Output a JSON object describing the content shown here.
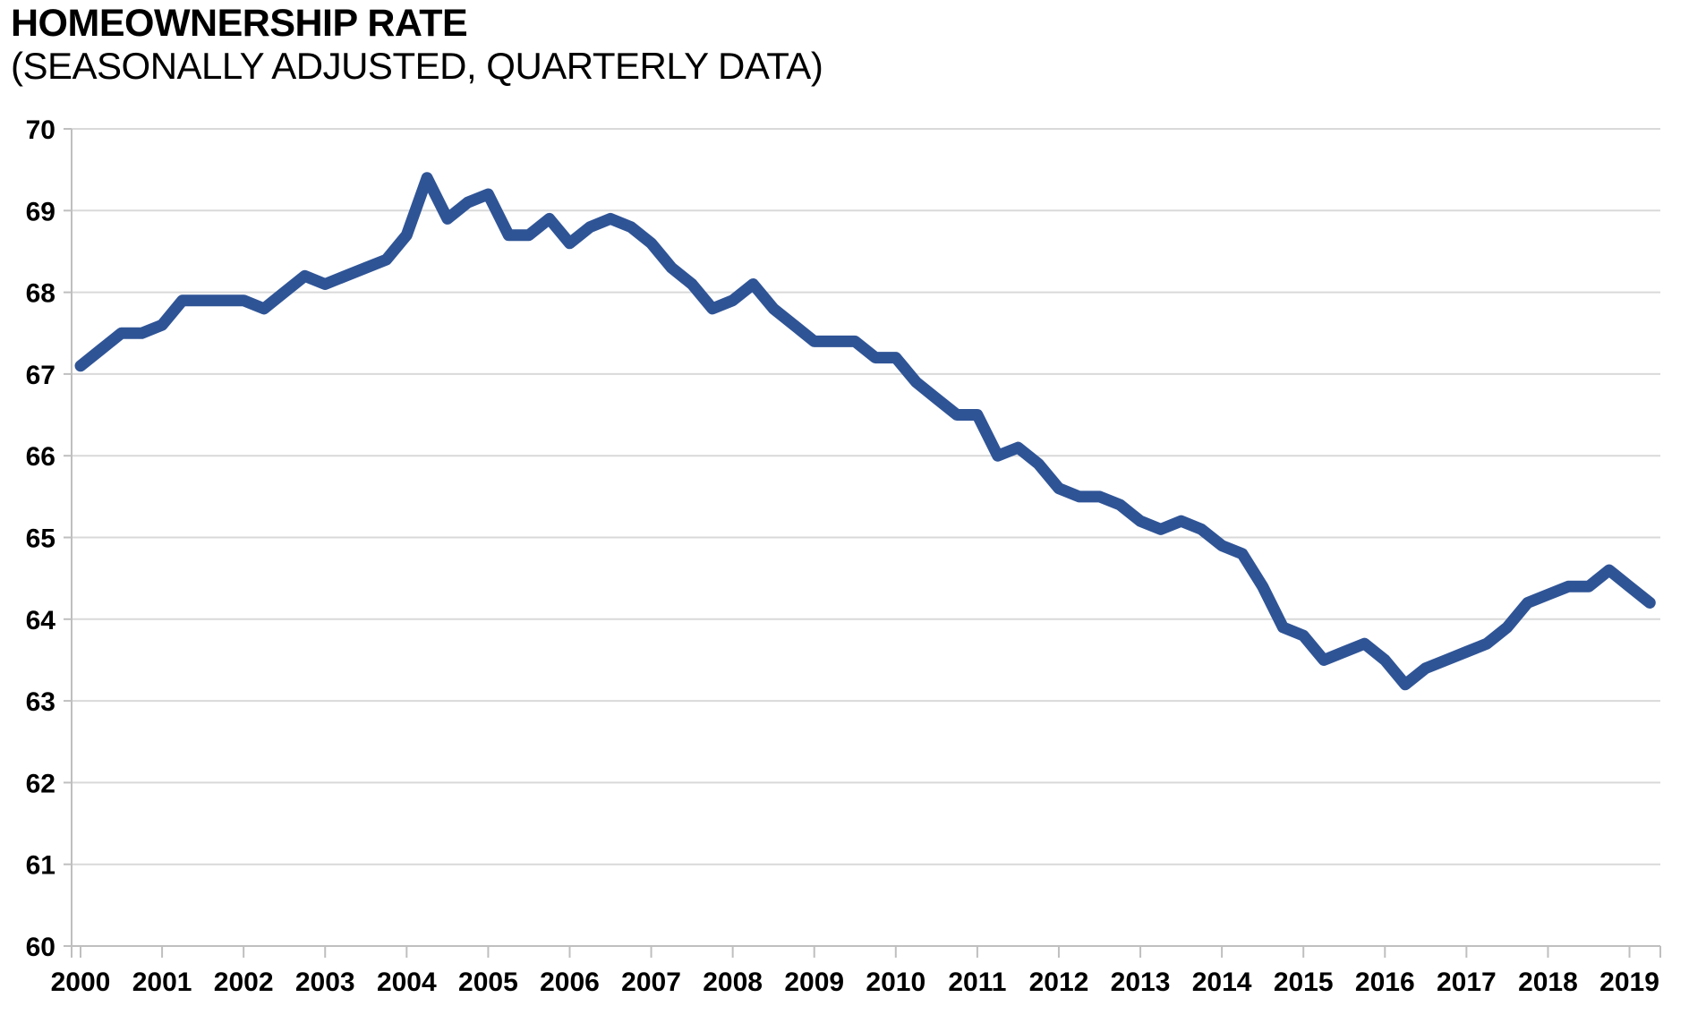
{
  "chart_data": {
    "type": "line",
    "title": "HOMEOWNERSHIP RATE",
    "subtitle": "(SEASONALLY ADJUSTED, QUARTERLY DATA)",
    "frequency": "quarterly",
    "x_start": "2000 Q1",
    "x_end": "2019 Q2",
    "x_tick_labels": [
      "2000",
      "2001",
      "2002",
      "2003",
      "2004",
      "2005",
      "2006",
      "2007",
      "2008",
      "2009",
      "2010",
      "2011",
      "2012",
      "2013",
      "2014",
      "2015",
      "2016",
      "2017",
      "2018",
      "2019"
    ],
    "y_ticks": [
      60,
      61,
      62,
      63,
      64,
      65,
      66,
      67,
      68,
      69,
      70
    ],
    "ylim": [
      60,
      70
    ],
    "grid": "horizontal",
    "legend": "none",
    "line_color": "#2F5496",
    "gridline_color": "#D9D9D9",
    "axis_color": "#BFBFBF",
    "label_color": "#000000",
    "series": [
      {
        "name": "Homeownership rate (%)",
        "values": [
          67.1,
          67.3,
          67.5,
          67.5,
          67.6,
          67.9,
          67.9,
          67.9,
          67.9,
          67.8,
          68.0,
          68.2,
          68.1,
          68.2,
          68.3,
          68.4,
          68.7,
          69.4,
          68.9,
          69.1,
          69.2,
          68.7,
          68.7,
          68.9,
          68.6,
          68.8,
          68.9,
          68.8,
          68.6,
          68.3,
          68.1,
          67.8,
          67.9,
          68.1,
          67.8,
          67.6,
          67.4,
          67.4,
          67.4,
          67.2,
          67.2,
          66.9,
          66.7,
          66.5,
          66.5,
          66.0,
          66.1,
          65.9,
          65.6,
          65.5,
          65.5,
          65.4,
          65.2,
          65.1,
          65.2,
          65.1,
          64.9,
          64.8,
          64.4,
          63.9,
          63.8,
          63.5,
          63.6,
          63.7,
          63.5,
          63.2,
          63.4,
          63.5,
          63.6,
          63.7,
          63.9,
          64.2,
          64.3,
          64.4,
          64.4,
          64.6,
          64.4,
          64.2
        ]
      }
    ]
  }
}
